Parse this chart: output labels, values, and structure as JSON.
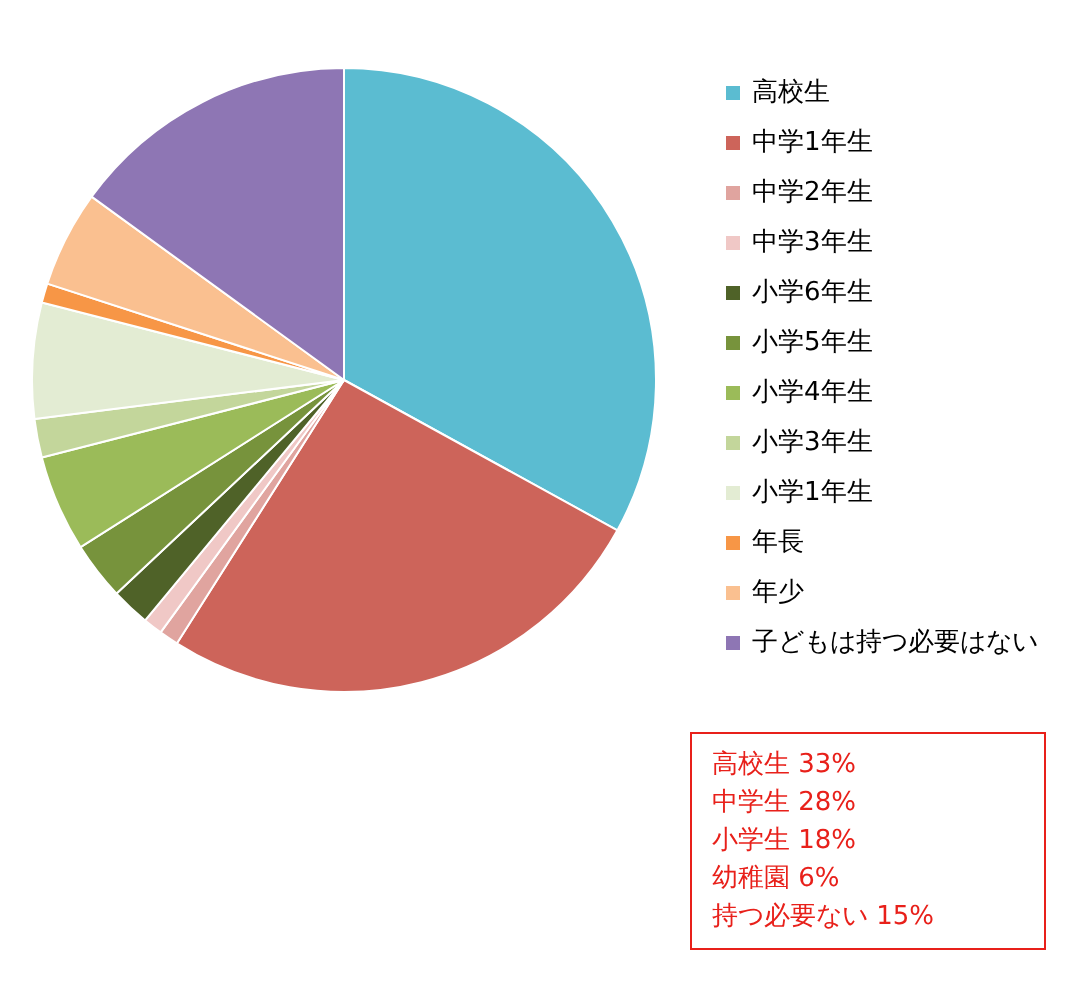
{
  "chart_data": {
    "type": "pie",
    "categories": [
      "高校生",
      "中学1年生",
      "中学2年生",
      "中学3年生",
      "小学6年生",
      "小学5年生",
      "小学4年生",
      "小学3年生",
      "小学1年生",
      "年長",
      "年少",
      "子どもは持つ必要はない"
    ],
    "values": [
      33,
      26,
      1,
      1,
      2,
      3,
      5,
      2,
      6,
      1,
      5,
      15
    ],
    "colors": [
      "#5bbcd1",
      "#cd645a",
      "#e0a49f",
      "#f0c8c6",
      "#4f6228",
      "#77933c",
      "#9bbb59",
      "#c3d69b",
      "#e3ecd3",
      "#f79646",
      "#fac090",
      "#8e76b4"
    ],
    "legend": "right",
    "annotations": [
      "高校生 33%",
      "中学生 28%",
      "小学生 18%",
      "幼稚園 6%",
      "持つ必要ない 15%"
    ]
  }
}
